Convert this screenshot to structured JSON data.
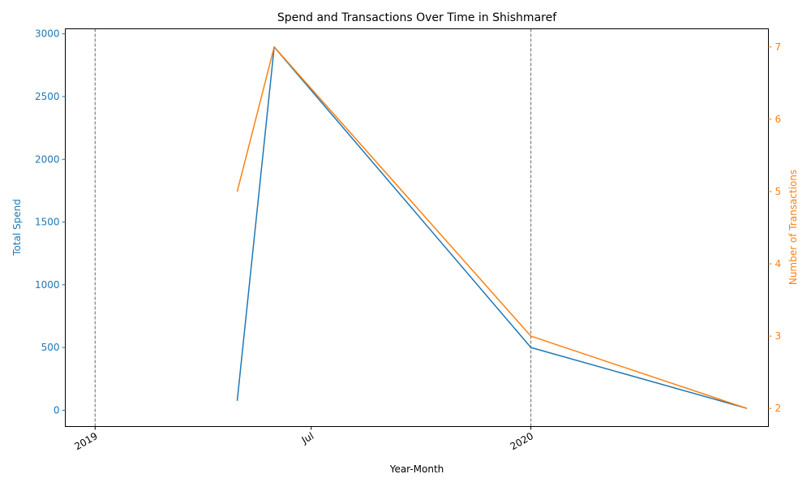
{
  "chart_data": {
    "type": "line",
    "title": "Spend and Transactions Over Time in Shishmaref",
    "xlabel": "Year-Month",
    "x_ticks": [
      {
        "date": "2019-01-01",
        "label": "2019"
      },
      {
        "date": "2019-07-01",
        "label": "Jul"
      },
      {
        "date": "2020-01-01",
        "label": "2020"
      }
    ],
    "xlim": [
      "2018-12-07",
      "2020-07-18"
    ],
    "vlines": [
      "2019-01-01",
      "2020-01-01"
    ],
    "x": [
      "2019-04-30",
      "2019-05-31",
      "2020-01-01",
      "2020-06-30"
    ],
    "y_left": {
      "label": "Total Spend",
      "color": "#1f77b4",
      "lim": [
        -130,
        3040
      ],
      "ticks": [
        0,
        500,
        1000,
        1500,
        2000,
        2500,
        3000
      ]
    },
    "y_right": {
      "label": "Number of Transactions",
      "color": "#ff7f0e",
      "lim": [
        1.75,
        7.25
      ],
      "ticks": [
        2,
        3,
        4,
        5,
        6,
        7
      ]
    },
    "series": [
      {
        "axis": "left",
        "color": "#1f77b4",
        "values": [
          75,
          2895,
          500,
          15
        ]
      },
      {
        "axis": "right",
        "color": "#ff7f0e",
        "values": [
          5,
          7,
          3,
          2
        ]
      }
    ],
    "grid": false
  }
}
